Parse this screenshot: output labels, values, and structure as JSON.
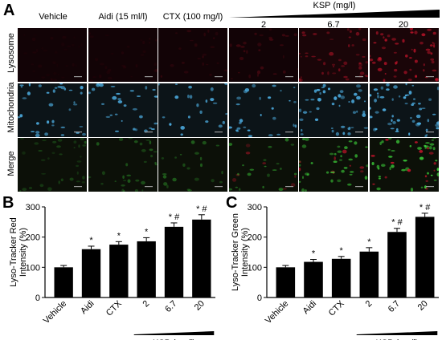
{
  "panel_a": {
    "letter": "A",
    "columns": [
      "Vehicle",
      "Aidi (15 ml/l)",
      "CTX (100 mg/l)",
      "2",
      "6.7",
      "20"
    ],
    "ksp_header": "KSP (mg/l)",
    "rows": [
      "Lysosome",
      "Mitochondria",
      "Merge"
    ],
    "colors": {
      "lysosome": "#c0142a",
      "mitochondria": "#4aa6d8",
      "merge_green": "#3dd23a"
    }
  },
  "chart_data": [
    {
      "panel": "B",
      "type": "bar",
      "ylabel": "Lyso-Tracker Red\nIntensity (%)",
      "ylim": [
        0,
        300
      ],
      "yticks": [
        0,
        100,
        200,
        300
      ],
      "categories": [
        "Vehicle",
        "Aidi",
        "CTX",
        "2",
        "6.7",
        "20"
      ],
      "values": [
        100,
        160,
        175,
        186,
        234,
        258
      ],
      "errors": [
        6,
        10,
        10,
        12,
        13,
        16
      ],
      "annotations": [
        "",
        "*",
        "*",
        "*",
        "* #",
        "* #"
      ],
      "group_label": "KSP (mg/l)"
    },
    {
      "panel": "C",
      "type": "bar",
      "ylabel": "Lyso-Tracker Green\nIntensity (%)",
      "ylim": [
        0,
        300
      ],
      "yticks": [
        0,
        100,
        200,
        300
      ],
      "categories": [
        "Vehicle",
        "Aidi",
        "CTX",
        "2",
        "6.7",
        "20"
      ],
      "values": [
        100,
        118,
        128,
        152,
        217,
        267
      ],
      "errors": [
        6,
        8,
        8,
        13,
        12,
        12
      ],
      "annotations": [
        "",
        "*",
        "*",
        "*",
        "* #",
        "* #"
      ],
      "group_label": "KSP (mg/l)"
    }
  ]
}
